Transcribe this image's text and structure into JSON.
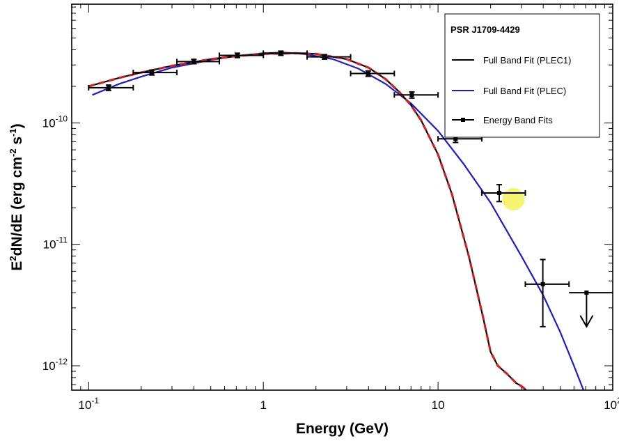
{
  "chart_data": {
    "type": "line",
    "x_scale": "log",
    "y_scale": "log",
    "xlim": [
      0.08,
      100
    ],
    "ylim": [
      6.3e-13,
      9.5e-10
    ],
    "xlabel": "Energy (GeV)",
    "ylabel_parts": [
      "E",
      "2",
      "dN/dE (erg cm",
      "-2",
      " s",
      "-1",
      ")"
    ],
    "x_ticks": [
      {
        "value": 0.1,
        "base": "10",
        "exp": "-1"
      },
      {
        "value": 1,
        "text": "1"
      },
      {
        "value": 10,
        "text": "10"
      },
      {
        "value": 100,
        "base": "10",
        "exp": "2"
      }
    ],
    "y_ticks": [
      {
        "value": 1e-12,
        "base": "10",
        "exp": "-12"
      },
      {
        "value": 1e-11,
        "base": "10",
        "exp": "-11"
      },
      {
        "value": 1e-10,
        "base": "10",
        "exp": "-10"
      }
    ],
    "legend": {
      "title": "PSR J1709-4429",
      "position": "top-right",
      "entries": [
        {
          "label": "Full Band Fit (PLEC1)",
          "color": "#000000",
          "style": "line"
        },
        {
          "label": "Full Band Fit (PLEC)",
          "color": "#1a1adc",
          "style": "line"
        },
        {
          "label": "Energy Band Fits",
          "color": "#000000",
          "style": "line-marker"
        }
      ]
    },
    "series": [
      {
        "name": "Full Band Fit (PLEC1)",
        "color": "#000000",
        "overlay_color": "#d42020",
        "x": [
          0.1,
          0.15,
          0.2,
          0.3,
          0.5,
          0.7,
          1,
          1.5,
          2,
          3,
          4,
          5,
          6,
          7,
          8,
          10,
          12,
          15,
          18,
          20,
          22,
          25,
          28,
          30,
          32
        ],
        "y": [
          2e-10,
          2.35e-10,
          2.6e-10,
          2.95e-10,
          3.35e-10,
          3.55e-10,
          3.7e-10,
          3.75e-10,
          3.7e-10,
          3.35e-10,
          2.85e-10,
          2.3e-10,
          1.8e-10,
          1.4e-10,
          1.05e-10,
          5.5e-11,
          2.6e-11,
          8e-12,
          2.6e-12,
          1.3e-12,
          1e-12,
          8.5e-13,
          7.2e-13,
          6.8e-13,
          6.3e-13
        ]
      },
      {
        "name": "Full Band Fit (PLEC)",
        "color": "#1a1adc",
        "x": [
          0.105,
          0.15,
          0.2,
          0.3,
          0.5,
          0.7,
          1,
          1.3,
          1.7,
          2.5,
          3.5,
          5,
          7,
          10,
          14,
          20,
          30,
          40,
          50,
          60,
          68
        ],
        "y": [
          1.7e-10,
          2.1e-10,
          2.4e-10,
          2.85e-10,
          3.3e-10,
          3.55e-10,
          3.75e-10,
          3.8e-10,
          3.7e-10,
          3.35e-10,
          2.8e-10,
          2.1e-10,
          1.45e-10,
          8.6e-11,
          4.6e-11,
          2.2e-11,
          8e-12,
          3.8e-12,
          1.9e-12,
          1e-12,
          6.3e-13
        ]
      }
    ],
    "band_points": [
      {
        "x": 0.13,
        "xlo": 0.1,
        "xhi": 0.18,
        "y": 1.95e-10,
        "ylo": 1.85e-10,
        "yhi": 2.05e-10
      },
      {
        "x": 0.23,
        "xlo": 0.18,
        "xhi": 0.32,
        "y": 2.6e-10,
        "ylo": 2.48e-10,
        "yhi": 2.72e-10
      },
      {
        "x": 0.4,
        "xlo": 0.32,
        "xhi": 0.56,
        "y": 3.2e-10,
        "ylo": 3.07e-10,
        "yhi": 3.34e-10
      },
      {
        "x": 0.71,
        "xlo": 0.56,
        "xhi": 1.0,
        "y": 3.6e-10,
        "ylo": 3.45e-10,
        "yhi": 3.75e-10
      },
      {
        "x": 1.26,
        "xlo": 1.0,
        "xhi": 1.78,
        "y": 3.75e-10,
        "ylo": 3.6e-10,
        "yhi": 3.9e-10
      },
      {
        "x": 2.24,
        "xlo": 1.78,
        "xhi": 3.16,
        "y": 3.5e-10,
        "ylo": 3.35e-10,
        "yhi": 3.65e-10
      },
      {
        "x": 3.98,
        "xlo": 3.16,
        "xhi": 5.62,
        "y": 2.55e-10,
        "ylo": 2.42e-10,
        "yhi": 2.68e-10
      },
      {
        "x": 7.08,
        "xlo": 5.62,
        "xhi": 10.0,
        "y": 1.7e-10,
        "ylo": 1.6e-10,
        "yhi": 1.8e-10
      },
      {
        "x": 12.6,
        "xlo": 10.0,
        "xhi": 17.8,
        "y": 7.4e-11,
        "ylo": 6.9e-11,
        "yhi": 7.9e-11
      },
      {
        "x": 22.4,
        "xlo": 17.8,
        "xhi": 31.6,
        "y": 2.65e-11,
        "ylo": 2.25e-11,
        "yhi": 3.1e-11
      },
      {
        "x": 39.8,
        "xlo": 31.6,
        "xhi": 56.2,
        "y": 4.7e-12,
        "ylo": 2.1e-12,
        "yhi": 7.5e-12
      }
    ],
    "upper_limit": {
      "x": 70.8,
      "xlo": 56.2,
      "xhi": 100,
      "y": 4e-12,
      "arrow_to": 2.1e-12
    },
    "highlight": {
      "x": 27,
      "y": 2.35e-11,
      "color": "#f4f25a"
    }
  }
}
